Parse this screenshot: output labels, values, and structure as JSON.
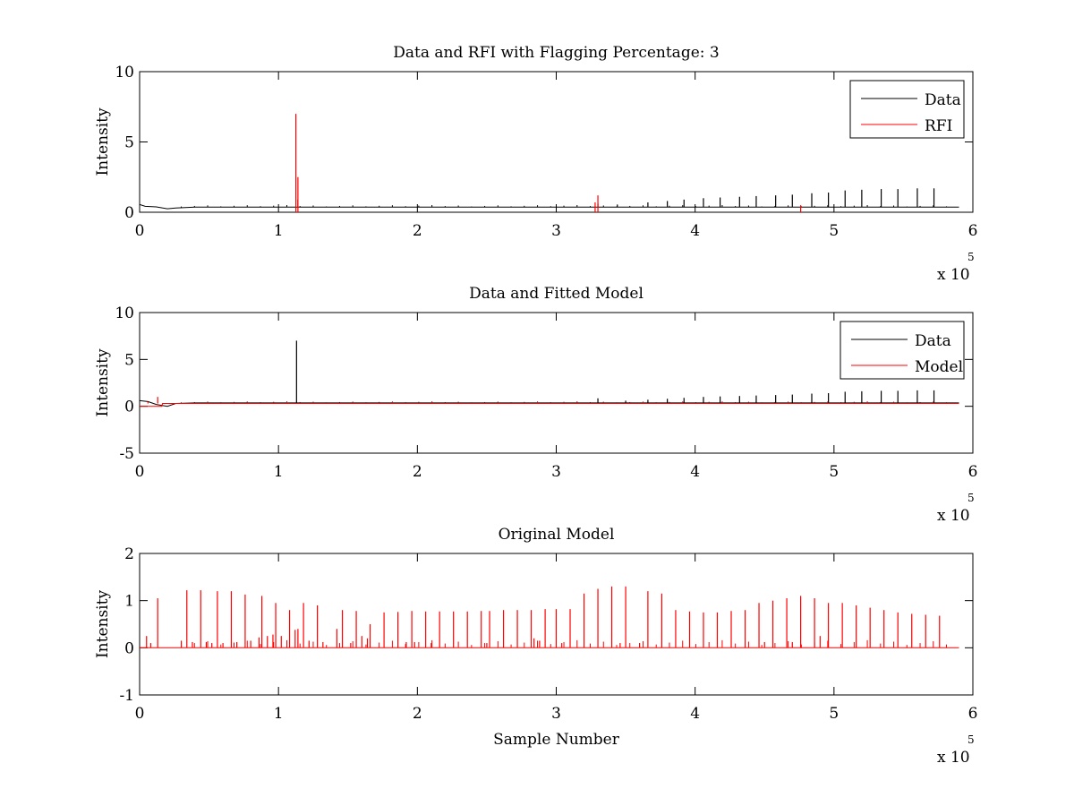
{
  "chart_data": [
    {
      "type": "line",
      "title": "Data and RFI with Flagging Percentage: 3",
      "xlabel": "",
      "ylabel": "Intensity",
      "xlim": [
        0,
        600000
      ],
      "ylim": [
        0,
        10
      ],
      "xticks": [
        "0",
        "1",
        "2",
        "3",
        "4",
        "5",
        "6"
      ],
      "yticks": [
        "0",
        "5",
        "10"
      ],
      "x_exponent_label": "x 10",
      "x_exponent": "5",
      "grid": false,
      "legend_position": "top-right",
      "series": [
        {
          "name": "Data",
          "color": "#000000",
          "baseline": 0.35,
          "baseline_points": [
            [
              0,
              0.55
            ],
            [
              4000,
              0.42
            ],
            [
              12000,
              0.38
            ],
            [
              20000,
              0.25
            ],
            [
              26000,
              0.3
            ],
            [
              40000,
              0.36
            ],
            [
              590000,
              0.36
            ]
          ],
          "spikes": [
            [
              114000,
              0.9
            ],
            [
              330000,
              0.6
            ],
            [
              344000,
              0.55
            ],
            [
              366000,
              0.7
            ],
            [
              380000,
              0.8
            ],
            [
              392000,
              0.9
            ],
            [
              406000,
              1.0
            ],
            [
              418000,
              1.05
            ],
            [
              432000,
              1.1
            ],
            [
              444000,
              1.15
            ],
            [
              458000,
              1.2
            ],
            [
              470000,
              1.25
            ],
            [
              484000,
              1.35
            ],
            [
              496000,
              1.4
            ],
            [
              508000,
              1.55
            ],
            [
              520000,
              1.6
            ],
            [
              534000,
              1.65
            ],
            [
              546000,
              1.65
            ],
            [
              560000,
              1.7
            ],
            [
              572000,
              1.7
            ]
          ]
        },
        {
          "name": "RFI",
          "color": "#ff0000",
          "spikes": [
            [
              112500,
              7.0
            ],
            [
              114000,
              2.5
            ],
            [
              330000,
              1.2
            ],
            [
              328000,
              0.7
            ],
            [
              476000,
              0.5
            ]
          ]
        }
      ]
    },
    {
      "type": "line",
      "title": "Data and Fitted Model",
      "xlabel": "",
      "ylabel": "Intensity",
      "xlim": [
        0,
        600000
      ],
      "ylim": [
        -5,
        10
      ],
      "xticks": [
        "0",
        "1",
        "2",
        "3",
        "4",
        "5",
        "6"
      ],
      "yticks": [
        "-5",
        "0",
        "5",
        "10"
      ],
      "x_exponent_label": "x 10",
      "x_exponent": "5",
      "grid": false,
      "legend_position": "top-right",
      "series": [
        {
          "name": "Data",
          "color": "#000000",
          "baseline": 0.35,
          "baseline_points": [
            [
              0,
              0.6
            ],
            [
              6000,
              0.5
            ],
            [
              12000,
              0.2
            ],
            [
              20000,
              0.0
            ],
            [
              26000,
              0.3
            ],
            [
              40000,
              0.36
            ],
            [
              590000,
              0.36
            ]
          ],
          "spikes": [
            [
              113000,
              7.0
            ],
            [
              330000,
              0.85
            ],
            [
              350000,
              0.6
            ],
            [
              366000,
              0.7
            ],
            [
              380000,
              0.8
            ],
            [
              392000,
              0.9
            ],
            [
              406000,
              1.0
            ],
            [
              418000,
              1.05
            ],
            [
              432000,
              1.1
            ],
            [
              444000,
              1.15
            ],
            [
              458000,
              1.2
            ],
            [
              470000,
              1.25
            ],
            [
              484000,
              1.35
            ],
            [
              496000,
              1.4
            ],
            [
              508000,
              1.55
            ],
            [
              520000,
              1.6
            ],
            [
              534000,
              1.65
            ],
            [
              546000,
              1.65
            ],
            [
              560000,
              1.7
            ],
            [
              572000,
              1.7
            ]
          ]
        },
        {
          "name": "Model",
          "color": "#ff0000",
          "baseline": 0.3,
          "baseline_points": [
            [
              0,
              0.0
            ],
            [
              16000,
              0.0
            ],
            [
              16500,
              0.3
            ],
            [
              590000,
              0.3
            ]
          ],
          "spikes": [
            [
              13000,
              1.0
            ],
            [
              6000,
              0.5
            ]
          ]
        }
      ]
    },
    {
      "type": "line",
      "title": "Original Model",
      "xlabel": "Sample Number",
      "ylabel": "Intensity",
      "xlim": [
        0,
        600000
      ],
      "ylim": [
        -1,
        2
      ],
      "xticks": [
        "0",
        "1",
        "2",
        "3",
        "4",
        "5",
        "6"
      ],
      "yticks": [
        "-1",
        "0",
        "1",
        "2"
      ],
      "x_exponent_label": "x 10",
      "x_exponent": "5",
      "grid": false,
      "series": [
        {
          "color": "#ff0000",
          "baseline": 0.0,
          "baseline_points": [
            [
              0,
              0.0
            ],
            [
              590000,
              0.0
            ]
          ],
          "spikes": [
            [
              5000,
              0.25
            ],
            [
              8000,
              0.1
            ],
            [
              13000,
              1.05
            ],
            [
              30000,
              0.15
            ],
            [
              34000,
              1.22
            ],
            [
              38000,
              0.12
            ],
            [
              44000,
              1.22
            ],
            [
              48000,
              0.12
            ],
            [
              52000,
              0.1
            ],
            [
              56000,
              1.2
            ],
            [
              60000,
              0.1
            ],
            [
              66000,
              1.2
            ],
            [
              70000,
              0.12
            ],
            [
              76000,
              1.13
            ],
            [
              80000,
              0.15
            ],
            [
              86000,
              0.22
            ],
            [
              88000,
              1.1
            ],
            [
              92000,
              0.25
            ],
            [
              96000,
              0.28
            ],
            [
              98000,
              0.95
            ],
            [
              102000,
              0.25
            ],
            [
              108000,
              0.8
            ],
            [
              112000,
              0.38
            ],
            [
              114000,
              0.4
            ],
            [
              118000,
              0.95
            ],
            [
              122000,
              0.15
            ],
            [
              128000,
              0.9
            ],
            [
              132000,
              0.12
            ],
            [
              142000,
              0.4
            ],
            [
              146000,
              0.8
            ],
            [
              152000,
              0.1
            ],
            [
              156000,
              0.78
            ],
            [
              160000,
              0.25
            ],
            [
              164000,
              0.2
            ],
            [
              166000,
              0.5
            ],
            [
              176000,
              0.75
            ],
            [
              186000,
              0.76
            ],
            [
              192000,
              0.12
            ],
            [
              196000,
              0.78
            ],
            [
              198000,
              0.12
            ],
            [
              206000,
              0.77
            ],
            [
              210000,
              0.1
            ],
            [
              216000,
              0.77
            ],
            [
              226000,
              0.77
            ],
            [
              236000,
              0.77
            ],
            [
              246000,
              0.78
            ],
            [
              250000,
              0.1
            ],
            [
              252000,
              0.78
            ],
            [
              262000,
              0.8
            ],
            [
              272000,
              0.8
            ],
            [
              282000,
              0.8
            ],
            [
              284000,
              0.2
            ],
            [
              288000,
              0.15
            ],
            [
              292000,
              0.82
            ],
            [
              300000,
              0.82
            ],
            [
              304000,
              0.1
            ],
            [
              310000,
              0.82
            ],
            [
              320000,
              1.15
            ],
            [
              330000,
              1.25
            ],
            [
              340000,
              1.3
            ],
            [
              346000,
              0.1
            ],
            [
              350000,
              1.3
            ],
            [
              360000,
              0.1
            ],
            [
              366000,
              1.2
            ],
            [
              376000,
              1.15
            ],
            [
              386000,
              0.8
            ],
            [
              396000,
              0.77
            ],
            [
              406000,
              0.75
            ],
            [
              416000,
              0.75
            ],
            [
              426000,
              0.78
            ],
            [
              436000,
              0.8
            ],
            [
              446000,
              0.95
            ],
            [
              450000,
              0.12
            ],
            [
              456000,
              1.0
            ],
            [
              466000,
              1.05
            ],
            [
              470000,
              0.12
            ],
            [
              476000,
              1.1
            ],
            [
              486000,
              1.05
            ],
            [
              490000,
              0.25
            ],
            [
              496000,
              0.95
            ],
            [
              506000,
              0.95
            ],
            [
              516000,
              0.9
            ],
            [
              526000,
              0.85
            ],
            [
              536000,
              0.8
            ],
            [
              546000,
              0.75
            ],
            [
              556000,
              0.72
            ],
            [
              566000,
              0.7
            ],
            [
              576000,
              0.68
            ]
          ]
        }
      ]
    }
  ]
}
